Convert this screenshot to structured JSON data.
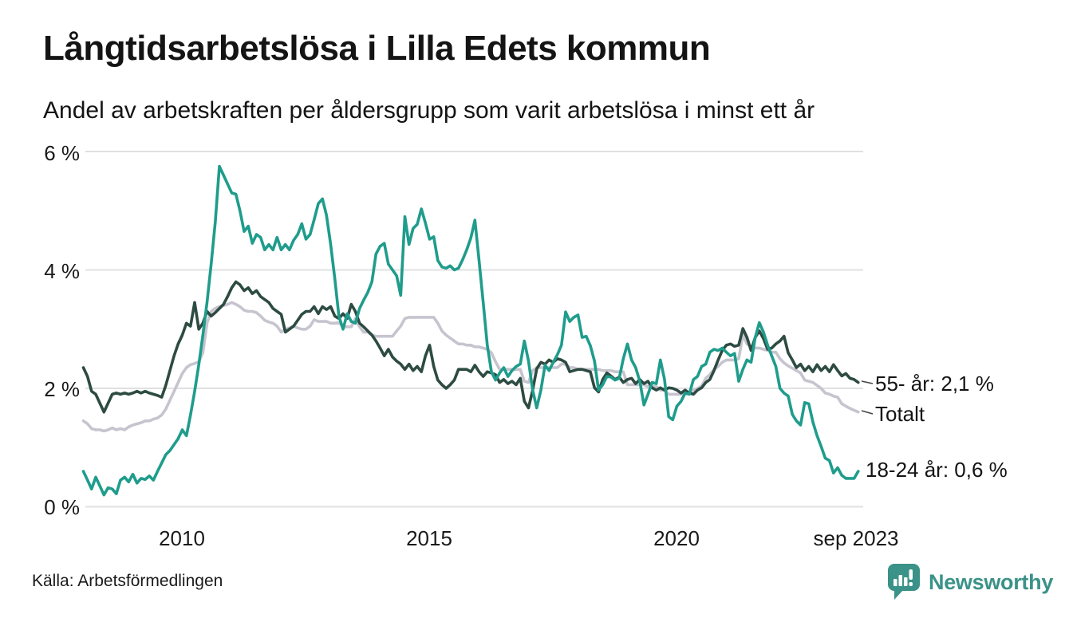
{
  "header": {
    "title": "Långtidsarbetslösa i Lilla Edets kommun",
    "subtitle": "Andel av arbetskraften per åldersgrupp som varit arbetslösa i minst ett år"
  },
  "chart_data": {
    "type": "line",
    "title": "Långtidsarbetslösa i Lilla Edets kommun",
    "subtitle": "Andel av arbetskraften per åldersgrupp som varit arbetslösa i minst ett år",
    "unit": "% av arbetskraften",
    "x_start": "2008-01",
    "x_end": "2023-09",
    "points_per_year": 12,
    "ylim": [
      0,
      6
    ],
    "grid": "horizontal",
    "y_ticks": [
      {
        "value": 0,
        "label": "0 %"
      },
      {
        "value": 2,
        "label": "2 %"
      },
      {
        "value": 4,
        "label": "4 %"
      },
      {
        "value": 6,
        "label": "6 %"
      }
    ],
    "x_ticks": [
      {
        "year": 2010.0,
        "label": "2010"
      },
      {
        "year": 2015.0,
        "label": "2015"
      },
      {
        "year": 2020.0,
        "label": "2020"
      },
      {
        "year": 2023.67,
        "label": "sep 2023"
      }
    ],
    "series": [
      {
        "name": "18-24 år",
        "color": "#1f9c8c",
        "end_label": "18-24 år: 0,6 %",
        "last_value": 0.6,
        "values": [
          0.6,
          0.45,
          0.3,
          0.5,
          0.35,
          0.2,
          0.32,
          0.3,
          0.22,
          0.45,
          0.5,
          0.42,
          0.55,
          0.4,
          0.48,
          0.46,
          0.52,
          0.45,
          0.6,
          0.74,
          0.88,
          0.95,
          1.05,
          1.15,
          1.3,
          1.2,
          1.55,
          1.95,
          2.4,
          2.9,
          3.45,
          4.1,
          4.8,
          5.75,
          5.6,
          5.45,
          5.3,
          5.28,
          5.0,
          4.65,
          4.74,
          4.45,
          4.6,
          4.55,
          4.34,
          4.43,
          4.34,
          4.55,
          4.34,
          4.43,
          4.34,
          4.5,
          4.6,
          4.78,
          4.52,
          4.6,
          4.85,
          5.12,
          5.2,
          4.92,
          4.43,
          3.85,
          3.22,
          3.0,
          3.26,
          3.13,
          3.1,
          3.35,
          3.49,
          3.62,
          3.8,
          4.27,
          4.4,
          4.45,
          4.1,
          4.0,
          3.9,
          3.57,
          4.9,
          4.43,
          4.7,
          4.77,
          5.03,
          4.79,
          4.52,
          4.56,
          4.16,
          4.05,
          4.03,
          4.07,
          4.0,
          4.03,
          4.17,
          4.34,
          4.54,
          4.84,
          4.16,
          3.45,
          2.73,
          2.28,
          2.14,
          2.26,
          2.35,
          2.2,
          2.3,
          2.37,
          2.41,
          2.8,
          2.46,
          1.97,
          1.67,
          1.97,
          2.39,
          2.3,
          2.44,
          2.57,
          2.73,
          3.29,
          3.13,
          3.2,
          3.24,
          2.86,
          2.88,
          2.72,
          2.46,
          1.97,
          2.06,
          2.2,
          2.19,
          2.14,
          2.17,
          2.5,
          2.75,
          2.48,
          2.35,
          2.12,
          1.72,
          1.9,
          2.1,
          2.08,
          2.48,
          2.15,
          1.52,
          1.47,
          1.7,
          1.78,
          1.92,
          1.9,
          2.15,
          2.2,
          2.37,
          2.41,
          2.61,
          2.66,
          2.64,
          2.68,
          2.61,
          2.55,
          2.59,
          2.12,
          2.32,
          2.48,
          2.44,
          2.86,
          3.11,
          2.95,
          2.73,
          2.55,
          2.37,
          2.0,
          1.92,
          1.87,
          1.56,
          1.45,
          1.38,
          1.76,
          1.74,
          1.43,
          1.2,
          1.02,
          0.82,
          0.78,
          0.57,
          0.66,
          0.53,
          0.48,
          0.48,
          0.48,
          0.6
        ]
      },
      {
        "name": "55- år",
        "color": "#2d4b42",
        "end_label": "55- år: 2,1 %",
        "last_value": 2.1,
        "values": [
          2.35,
          2.2,
          1.95,
          1.9,
          1.75,
          1.6,
          1.75,
          1.9,
          1.92,
          1.9,
          1.92,
          1.9,
          1.92,
          1.95,
          1.92,
          1.95,
          1.92,
          1.9,
          1.88,
          1.85,
          2.05,
          2.3,
          2.55,
          2.75,
          2.9,
          3.1,
          3.05,
          3.45,
          3.0,
          3.1,
          3.3,
          3.22,
          3.28,
          3.35,
          3.42,
          3.55,
          3.7,
          3.8,
          3.75,
          3.65,
          3.7,
          3.6,
          3.65,
          3.55,
          3.5,
          3.45,
          3.35,
          3.3,
          3.25,
          2.95,
          3.0,
          3.05,
          3.15,
          3.25,
          3.3,
          3.3,
          3.38,
          3.26,
          3.38,
          3.33,
          3.38,
          3.22,
          3.18,
          3.26,
          3.18,
          3.42,
          3.3,
          3.1,
          3.04,
          2.97,
          2.9,
          2.8,
          2.68,
          2.55,
          2.66,
          2.53,
          2.46,
          2.41,
          2.32,
          2.41,
          2.3,
          2.37,
          2.28,
          2.55,
          2.73,
          2.37,
          2.14,
          2.06,
          2.0,
          2.06,
          2.14,
          2.32,
          2.32,
          2.32,
          2.28,
          2.39,
          2.28,
          2.2,
          2.28,
          2.26,
          2.23,
          2.1,
          2.15,
          2.08,
          2.12,
          2.06,
          2.17,
          1.78,
          1.67,
          1.97,
          2.33,
          2.44,
          2.41,
          2.48,
          2.44,
          2.5,
          2.48,
          2.44,
          2.28,
          2.3,
          2.32,
          2.32,
          2.3,
          2.28,
          2.01,
          1.94,
          2.15,
          2.26,
          2.21,
          2.15,
          2.19,
          2.1,
          2.15,
          2.17,
          2.08,
          2.15,
          2.08,
          2.12,
          2.01,
          1.97,
          2.01,
          1.97,
          2.01,
          2.0,
          1.97,
          1.92,
          1.97,
          1.92,
          1.9,
          1.97,
          2.01,
          2.1,
          2.15,
          2.3,
          2.48,
          2.64,
          2.73,
          2.75,
          2.71,
          2.73,
          3.01,
          2.86,
          2.64,
          2.86,
          2.97,
          2.84,
          2.66,
          2.68,
          2.75,
          2.8,
          2.88,
          2.6,
          2.48,
          2.35,
          2.41,
          2.3,
          2.37,
          2.28,
          2.4,
          2.3,
          2.37,
          2.28,
          2.4,
          2.3,
          2.21,
          2.25,
          2.17,
          2.15,
          2.1
        ]
      },
      {
        "name": "Totalt",
        "color": "#c6c4ce",
        "end_label": "Totalt",
        "last_value": 1.6,
        "values": [
          1.45,
          1.4,
          1.32,
          1.3,
          1.3,
          1.28,
          1.3,
          1.33,
          1.3,
          1.32,
          1.3,
          1.35,
          1.38,
          1.4,
          1.42,
          1.45,
          1.45,
          1.48,
          1.5,
          1.55,
          1.65,
          1.8,
          1.95,
          2.1,
          2.25,
          2.35,
          2.4,
          2.42,
          2.45,
          2.6,
          3.1,
          3.3,
          3.35,
          3.38,
          3.4,
          3.42,
          3.45,
          3.42,
          3.38,
          3.32,
          3.3,
          3.3,
          3.28,
          3.22,
          3.15,
          3.12,
          3.1,
          3.05,
          2.95,
          3.0,
          3.02,
          3.05,
          3.02,
          3.0,
          3.0,
          3.05,
          3.16,
          3.13,
          3.13,
          3.13,
          3.1,
          3.1,
          3.11,
          3.04,
          3.04,
          3.04,
          3.18,
          3.04,
          2.95,
          2.95,
          2.9,
          2.88,
          2.88,
          2.88,
          2.88,
          2.88,
          2.97,
          3.05,
          3.18,
          3.2,
          3.2,
          3.2,
          3.2,
          3.2,
          3.2,
          3.2,
          3.1,
          2.97,
          2.9,
          2.85,
          2.8,
          2.75,
          2.75,
          2.73,
          2.73,
          2.7,
          2.7,
          2.68,
          2.66,
          2.6,
          2.45,
          2.32,
          2.32,
          2.32,
          2.32,
          2.32,
          2.32,
          2.12,
          2.1,
          2.3,
          2.35,
          2.35,
          2.35,
          2.35,
          2.35,
          2.35,
          2.41,
          2.41,
          2.35,
          2.35,
          2.32,
          2.32,
          2.32,
          2.32,
          2.32,
          2.32,
          2.3,
          2.3,
          2.3,
          2.28,
          2.28,
          2.28,
          2.06,
          2.06,
          2.06,
          2.06,
          2.06,
          2.03,
          2.03,
          2.03,
          1.97,
          1.97,
          1.9,
          1.9,
          1.9,
          1.9,
          1.92,
          1.92,
          1.97,
          2.0,
          2.04,
          2.17,
          2.23,
          2.32,
          2.37,
          2.44,
          2.48,
          2.48,
          2.48,
          2.5,
          2.91,
          2.75,
          2.71,
          2.68,
          2.68,
          2.66,
          2.64,
          2.61,
          2.61,
          2.5,
          2.43,
          2.38,
          2.34,
          2.3,
          2.26,
          2.14,
          2.12,
          2.1,
          2.05,
          2.0,
          1.92,
          1.9,
          1.87,
          1.85,
          1.74,
          1.7,
          1.66,
          1.63,
          1.6
        ]
      }
    ],
    "colors": {
      "grid": "#e0e0e0",
      "connector": "#444444",
      "teal": "#1f9c8c",
      "dark_green": "#2d4b42",
      "light_gray": "#c6c4ce"
    }
  },
  "footer": {
    "source": "Källa: Arbetsförmedlingen",
    "brand": "Newsworthy"
  }
}
